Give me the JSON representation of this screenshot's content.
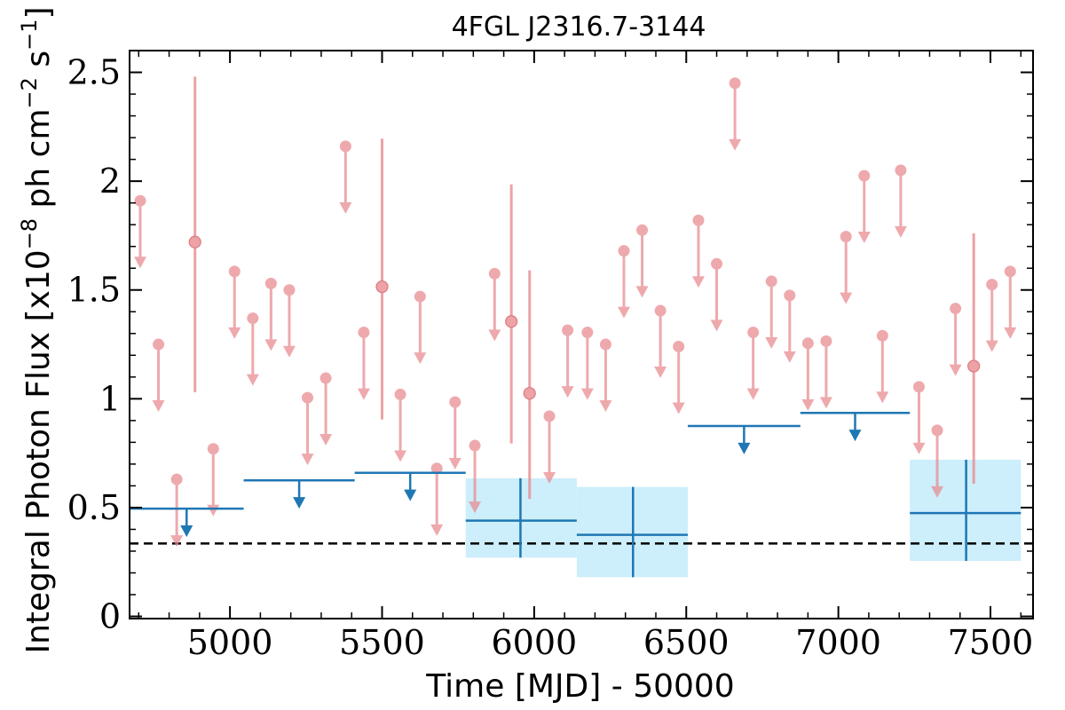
{
  "chart_data": {
    "type": "scatter",
    "title": "4FGL J2316.7-3144",
    "xlabel": "Time [MJD] - 50000",
    "ylabel": "Integral Photon Flux [x10",
    "ylabel_exp1": "−8",
    "ylabel_mid": " ph cm",
    "ylabel_exp2": "−2",
    "ylabel_mid2": " s",
    "ylabel_exp3": "−1",
    "ylabel_end": "]",
    "xlim": [
      4670,
      7640
    ],
    "ylim": [
      -0.01,
      2.6
    ],
    "xticks": [
      5000,
      5500,
      6000,
      6500,
      7000,
      7500
    ],
    "xtick_labels": [
      "5000",
      "5500",
      "6000",
      "6500",
      "7000",
      "7500"
    ],
    "yticks": [
      0,
      0.5,
      1,
      1.5,
      2,
      2.5
    ],
    "ytick_labels": [
      "0",
      "0.5",
      "1",
      "1.5",
      "2",
      "2.5"
    ],
    "reference_level": 0.335,
    "colors": {
      "short_bins": "#e8898e",
      "long_bins": "#1f77b4",
      "band_fill": "#cdeefb",
      "reference_line": "#000000"
    },
    "short_bin_upper_limits": [
      {
        "x": 4705,
        "y": 1.91
      },
      {
        "x": 4765,
        "y": 1.25
      },
      {
        "x": 4825,
        "y": 0.63
      },
      {
        "x": 4945,
        "y": 0.77
      },
      {
        "x": 5015,
        "y": 1.585
      },
      {
        "x": 5075,
        "y": 1.37
      },
      {
        "x": 5135,
        "y": 1.53
      },
      {
        "x": 5195,
        "y": 1.5
      },
      {
        "x": 5255,
        "y": 1.005
      },
      {
        "x": 5315,
        "y": 1.095
      },
      {
        "x": 5380,
        "y": 2.16
      },
      {
        "x": 5440,
        "y": 1.305
      },
      {
        "x": 5560,
        "y": 1.02
      },
      {
        "x": 5625,
        "y": 1.47
      },
      {
        "x": 5680,
        "y": 0.68
      },
      {
        "x": 5740,
        "y": 0.985
      },
      {
        "x": 5805,
        "y": 0.785
      },
      {
        "x": 5870,
        "y": 1.575
      },
      {
        "x": 6050,
        "y": 0.92
      },
      {
        "x": 6110,
        "y": 1.315
      },
      {
        "x": 6175,
        "y": 1.305
      },
      {
        "x": 6235,
        "y": 1.25
      },
      {
        "x": 6295,
        "y": 1.68
      },
      {
        "x": 6355,
        "y": 1.775
      },
      {
        "x": 6415,
        "y": 1.405
      },
      {
        "x": 6475,
        "y": 1.24
      },
      {
        "x": 6540,
        "y": 1.82
      },
      {
        "x": 6600,
        "y": 1.62
      },
      {
        "x": 6660,
        "y": 2.45
      },
      {
        "x": 6720,
        "y": 1.305
      },
      {
        "x": 6780,
        "y": 1.54
      },
      {
        "x": 6840,
        "y": 1.475
      },
      {
        "x": 6900,
        "y": 1.255
      },
      {
        "x": 6960,
        "y": 1.265
      },
      {
        "x": 7025,
        "y": 1.745
      },
      {
        "x": 7085,
        "y": 2.025
      },
      {
        "x": 7145,
        "y": 1.29
      },
      {
        "x": 7205,
        "y": 2.05
      },
      {
        "x": 7265,
        "y": 1.055
      },
      {
        "x": 7325,
        "y": 0.855
      },
      {
        "x": 7385,
        "y": 1.415
      },
      {
        "x": 7505,
        "y": 1.525
      },
      {
        "x": 7565,
        "y": 1.585
      }
    ],
    "short_bin_detections": [
      {
        "x": 4885,
        "y": 1.72,
        "ylo": 1.03,
        "yhi": 2.48
      },
      {
        "x": 5500,
        "y": 1.515,
        "ylo": 0.905,
        "yhi": 2.195
      },
      {
        "x": 5925,
        "y": 1.355,
        "ylo": 0.795,
        "yhi": 1.985
      },
      {
        "x": 5985,
        "y": 1.025,
        "ylo": 0.54,
        "yhi": 1.59
      },
      {
        "x": 7445,
        "y": 1.15,
        "ylo": 0.61,
        "yhi": 1.76
      }
    ],
    "long_bin_upper_limits": [
      {
        "x0": 4670,
        "x1": 5045,
        "y": 0.495
      },
      {
        "x0": 5045,
        "x1": 5410,
        "y": 0.625
      },
      {
        "x0": 5410,
        "x1": 5775,
        "y": 0.66
      },
      {
        "x0": 6505,
        "x1": 6875,
        "y": 0.875
      },
      {
        "x0": 6875,
        "x1": 7235,
        "y": 0.935
      }
    ],
    "long_bin_detections": [
      {
        "x0": 5775,
        "x1": 6140,
        "x": 5955,
        "y": 0.44,
        "ylo": 0.27,
        "yhi": 0.635
      },
      {
        "x0": 6140,
        "x1": 6505,
        "x": 6325,
        "y": 0.375,
        "ylo": 0.18,
        "yhi": 0.595
      },
      {
        "x0": 7235,
        "x1": 7600,
        "x": 7420,
        "y": 0.475,
        "ylo": 0.255,
        "yhi": 0.72
      }
    ]
  }
}
